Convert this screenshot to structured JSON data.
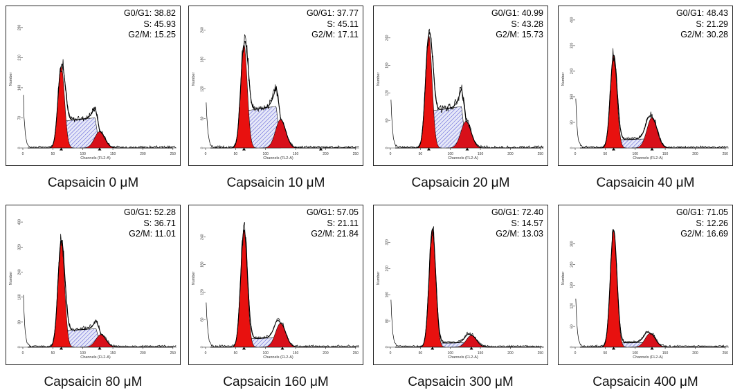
{
  "chart_data": [
    {
      "type": "area",
      "caption": "Capsaicin 0 μM",
      "stats": {
        "g0g1": "G0/G1: 38.82",
        "s": "S: 45.93",
        "g2m": "G2/M: 15.25"
      },
      "g0g1_pct": 38.82,
      "s_pct": 45.93,
      "g2m_pct": 15.25,
      "g1_peak": [
        64,
        190
      ],
      "g2_peak": [
        128,
        38
      ],
      "s_level": 62,
      "y_ticks": [
        0,
        70,
        140,
        210,
        280
      ],
      "y_max": 320,
      "x_ticks": [
        0,
        50,
        100,
        150,
        200,
        250
      ],
      "x_range": [
        0,
        256
      ],
      "xlabel": "Channels (FL2-A)",
      "ylabel": "Number",
      "markers": [
        64,
        128
      ]
    },
    {
      "type": "area",
      "caption": "Capsaicin 10 μM",
      "stats": {
        "g0g1": "G0/G1: 37.77",
        "s": "S: 45.11",
        "g2m": "G2/M: 17.11"
      },
      "g0g1_pct": 37.77,
      "s_pct": 45.11,
      "g2m_pct": 17.11,
      "g1_peak": [
        64,
        210
      ],
      "g2_peak": [
        125,
        58
      ],
      "s_level": 75,
      "y_ticks": [
        0,
        60,
        120,
        180,
        240
      ],
      "y_max": 280,
      "x_ticks": [
        0,
        50,
        100,
        150,
        200,
        250
      ],
      "x_range": [
        0,
        256
      ],
      "xlabel": "Channels (FL2-A)",
      "ylabel": "Number",
      "markers": [
        64,
        192
      ]
    },
    {
      "type": "area",
      "caption": "Capsaicin 20 μM",
      "stats": {
        "g0g1": "G0/G1: 40.99",
        "s": "S: 43.28",
        "g2m": "G2/M: 15.73"
      },
      "g0g1_pct": 40.99,
      "s_pct": 43.28,
      "g2m_pct": 15.73,
      "g1_peak": [
        64,
        245
      ],
      "g2_peak": [
        126,
        58
      ],
      "s_level": 80,
      "y_ticks": [
        0,
        60,
        120,
        180,
        240
      ],
      "y_max": 300,
      "x_ticks": [
        0,
        50,
        100,
        150,
        200,
        250
      ],
      "x_range": [
        0,
        256
      ],
      "xlabel": "Channels (FL2-A)",
      "ylabel": "Number",
      "markers": [
        64,
        128
      ]
    },
    {
      "type": "area",
      "caption": "Capsaicin 40 μM",
      "stats": {
        "g0g1": "G0/G1: 48.43",
        "s": "S: 21.29",
        "g2m": "G2/M: 30.28"
      },
      "g0g1_pct": 48.43,
      "s_pct": 21.29,
      "g2m_pct": 30.28,
      "g1_peak": [
        64,
        290
      ],
      "g2_peak": [
        128,
        95
      ],
      "s_level": 25,
      "y_ticks": [
        0,
        80,
        160,
        240,
        320,
        400
      ],
      "y_max": 430,
      "x_ticks": [
        0,
        50,
        100,
        150,
        200,
        250
      ],
      "x_range": [
        0,
        256
      ],
      "xlabel": "Channels (FL2-A)",
      "ylabel": "Number",
      "markers": [
        64,
        128
      ]
    },
    {
      "type": "area",
      "caption": "Capsaicin 80 μM",
      "stats": {
        "g0g1": "G0/G1: 52.28",
        "s": "S: 36.71",
        "g2m": "G2/M: 11.01"
      },
      "g0g1_pct": 52.28,
      "s_pct": 36.71,
      "g2m_pct": 11.01,
      "g1_peak": [
        64,
        340
      ],
      "g2_peak": [
        130,
        40
      ],
      "s_level": 52,
      "y_ticks": [
        0,
        80,
        160,
        240,
        320,
        400
      ],
      "y_max": 440,
      "x_ticks": [
        0,
        50,
        100,
        150,
        200,
        250
      ],
      "x_range": [
        0,
        256
      ],
      "xlabel": "Channels (FL2-A)",
      "ylabel": "Number",
      "markers": [
        64,
        128
      ]
    },
    {
      "type": "area",
      "caption": "Capsaicin 160 μM",
      "stats": {
        "g0g1": "G0/G1: 57.05",
        "s": "S: 21.11",
        "g2m": "G2/M: 21.84"
      },
      "g0g1_pct": 57.05,
      "s_pct": 21.11,
      "g2m_pct": 21.84,
      "g1_peak": [
        64,
        255
      ],
      "g2_peak": [
        125,
        52
      ],
      "s_level": 18,
      "y_ticks": [
        0,
        60,
        120,
        180,
        240
      ],
      "y_max": 300,
      "x_ticks": [
        0,
        50,
        100,
        150,
        200,
        250
      ],
      "x_range": [
        0,
        256
      ],
      "xlabel": "Channels (FL2-A)",
      "ylabel": "Number",
      "markers": [
        64,
        128
      ]
    },
    {
      "type": "area",
      "caption": "Capsaicin 300 μM",
      "stats": {
        "g0g1": "G0/G1: 72.40",
        "s": "S: 14.57",
        "g2m": "G2/M: 13.03"
      },
      "g0g1_pct": 72.4,
      "s_pct": 14.57,
      "g2m_pct": 13.03,
      "g1_peak": [
        70,
        360
      ],
      "g2_peak": [
        135,
        36
      ],
      "s_level": 12,
      "y_ticks": [
        0,
        80,
        160,
        240,
        320
      ],
      "y_max": 420,
      "x_ticks": [
        0,
        50,
        100,
        150,
        200,
        250
      ],
      "x_range": [
        0,
        256
      ],
      "xlabel": "Channels (FL2-A)",
      "ylabel": "Number",
      "markers": [
        70,
        135
      ]
    },
    {
      "type": "area",
      "caption": "Capsaicin 400 μM",
      "stats": {
        "g0g1": "G0/G1: 71.05",
        "s": "S: 12.26",
        "g2m": "G2/M: 16.69"
      },
      "g0g1_pct": 71.05,
      "s_pct": 12.26,
      "g2m_pct": 16.69,
      "g1_peak": [
        64,
        340
      ],
      "g2_peak": [
        125,
        40
      ],
      "s_level": 12,
      "y_ticks": [
        0,
        60,
        120,
        180,
        240,
        300
      ],
      "y_max": 400,
      "x_ticks": [
        0,
        50,
        100,
        150,
        200,
        250
      ],
      "x_range": [
        0,
        256
      ],
      "xlabel": "Channels (FL2-A)",
      "ylabel": "Number",
      "markers": [
        64,
        128
      ]
    }
  ],
  "colors": {
    "g1_fill": "#e8110f",
    "g2_fill": "#d8101a",
    "s_hatch": "#3b3bd0",
    "s_bg": "#e6e8f8",
    "line": "#000000",
    "frame": "#222222"
  }
}
